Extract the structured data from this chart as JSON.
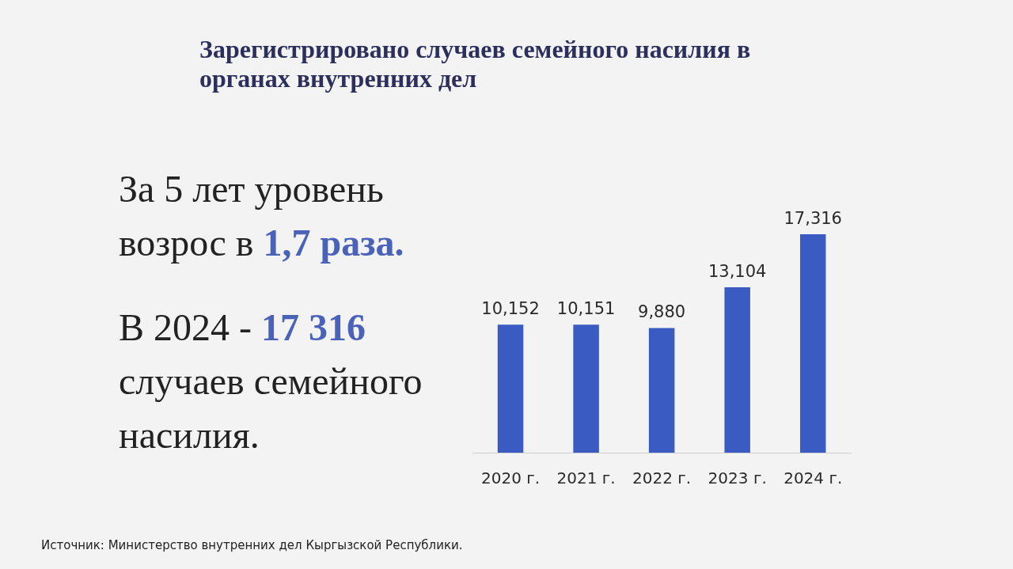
{
  "chart_data": {
    "type": "bar",
    "title": "Зарегистрировано случаев семейного насилия в органах внутренних дел",
    "categories": [
      "2020 г.",
      "2021 г.",
      "2022 г.",
      "2023 г.",
      "2024 г."
    ],
    "values": [
      10152,
      10151,
      9880,
      13104,
      17316
    ],
    "value_labels": [
      "10,152",
      "10,151",
      "9,880",
      "13,104",
      "17,316"
    ],
    "color": "#3a5bc2",
    "grid": false,
    "legend": false,
    "tick_labels": "x",
    "annotations": [
      "За 5 лет уровень",
      "возрос в",
      "1,7 раза.",
      "В 2024 -",
      "17 316",
      "случаев семейного насилия.",
      "Источник: Министерство внутренних дел Кыргызской Республики."
    ]
  }
}
